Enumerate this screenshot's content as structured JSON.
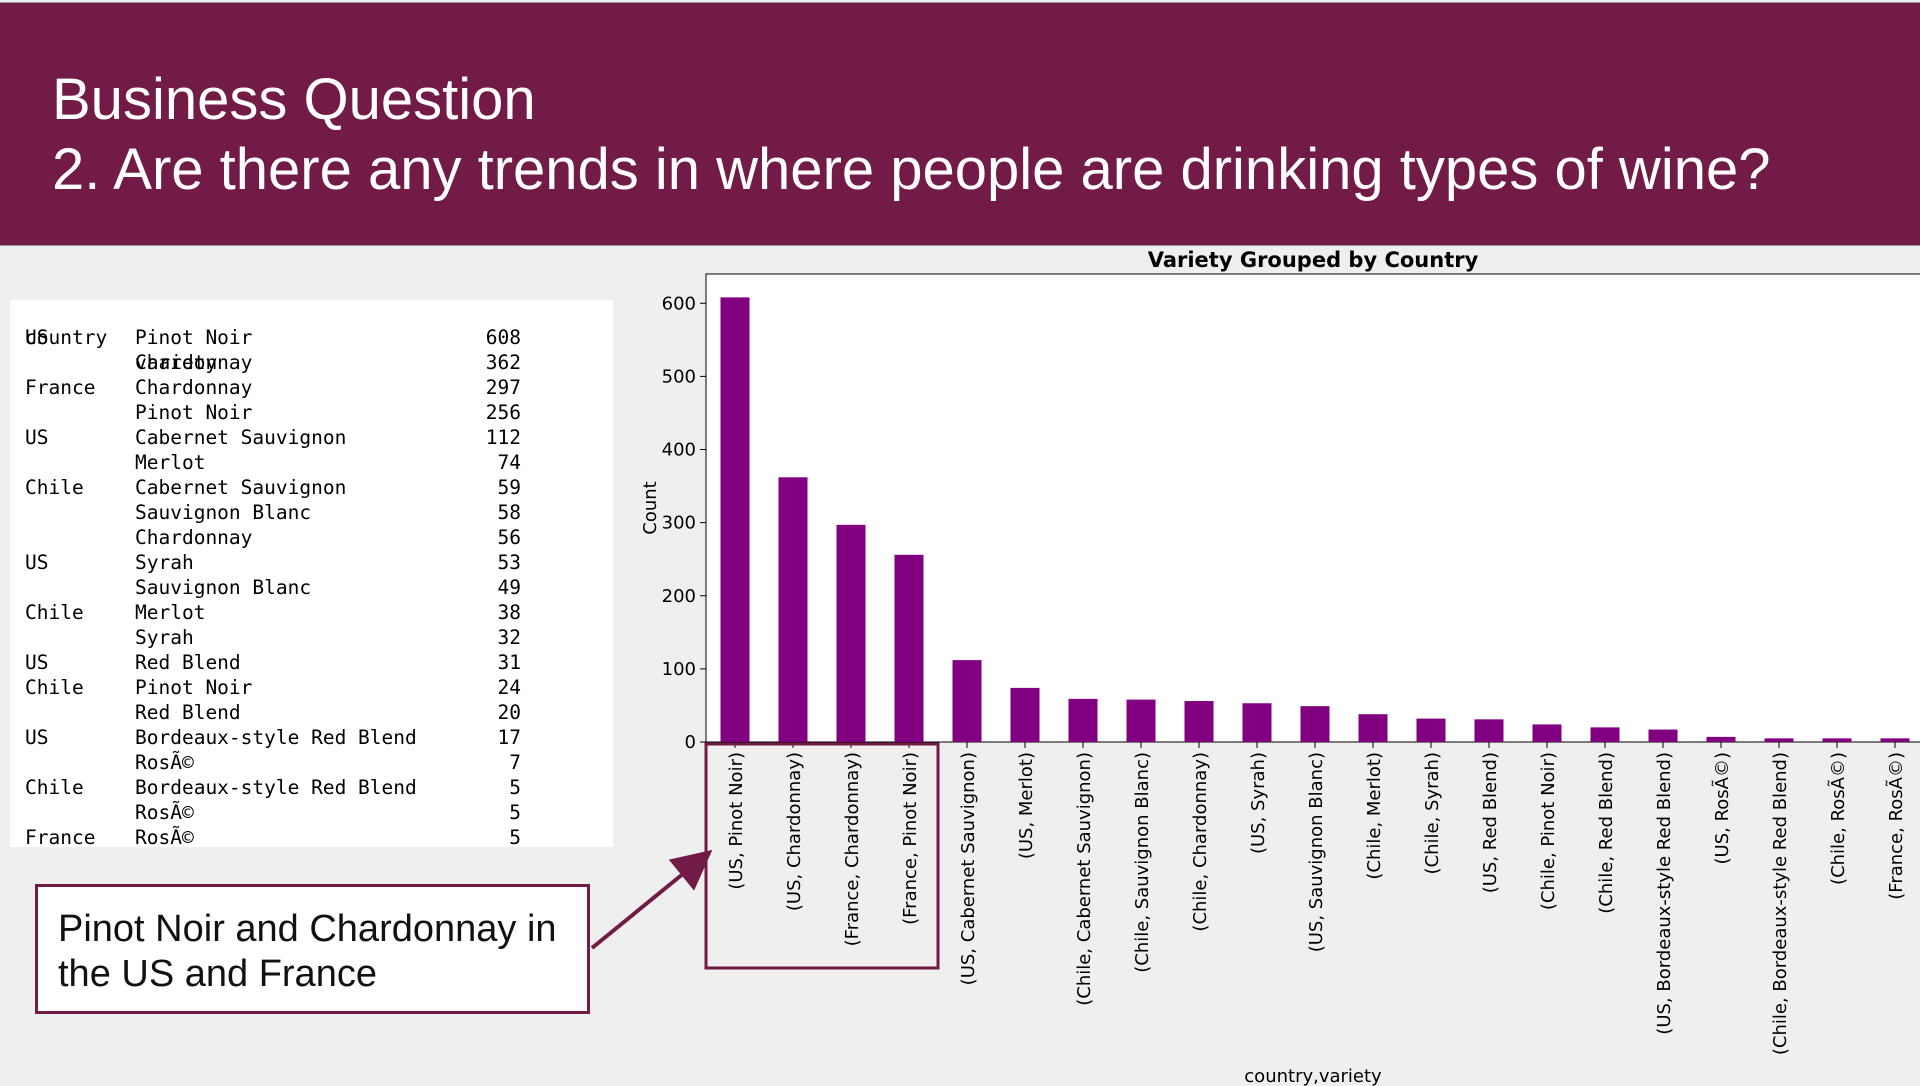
{
  "slide": {
    "title_line1": "Business Question",
    "title_line2": "2. Are there any trends in where people are drinking types of wine?",
    "header_color": "#731b47",
    "callout_text": "Pinot Noir and Chardonnay in the US and France"
  },
  "table": {
    "headers": [
      "country",
      "variety"
    ],
    "rows": [
      {
        "country": "US",
        "variety": "Pinot Noir",
        "count": "608"
      },
      {
        "country": "",
        "variety": "Chardonnay",
        "count": "362"
      },
      {
        "country": "France",
        "variety": "Chardonnay",
        "count": "297"
      },
      {
        "country": "",
        "variety": "Pinot Noir",
        "count": "256"
      },
      {
        "country": "US",
        "variety": "Cabernet Sauvignon",
        "count": "112"
      },
      {
        "country": "",
        "variety": "Merlot",
        "count": "74"
      },
      {
        "country": "Chile",
        "variety": "Cabernet Sauvignon",
        "count": "59"
      },
      {
        "country": "",
        "variety": "Sauvignon Blanc",
        "count": "58"
      },
      {
        "country": "",
        "variety": "Chardonnay",
        "count": "56"
      },
      {
        "country": "US",
        "variety": "Syrah",
        "count": "53"
      },
      {
        "country": "",
        "variety": "Sauvignon Blanc",
        "count": "49"
      },
      {
        "country": "Chile",
        "variety": "Merlot",
        "count": "38"
      },
      {
        "country": "",
        "variety": "Syrah",
        "count": "32"
      },
      {
        "country": "US",
        "variety": "Red Blend",
        "count": "31"
      },
      {
        "country": "Chile",
        "variety": "Pinot Noir",
        "count": "24"
      },
      {
        "country": "",
        "variety": "Red Blend",
        "count": "20"
      },
      {
        "country": "US",
        "variety": "Bordeaux-style Red Blend",
        "count": "17"
      },
      {
        "country": "",
        "variety": "RosÃ©",
        "count": "7"
      },
      {
        "country": "Chile",
        "variety": "Bordeaux-style Red Blend",
        "count": "5"
      },
      {
        "country": "",
        "variety": "RosÃ©",
        "count": "5"
      },
      {
        "country": "France",
        "variety": "RosÃ©",
        "count": "5"
      }
    ]
  },
  "chart_data": {
    "type": "bar",
    "title": "Variety Grouped by Country",
    "xlabel": "country,variety",
    "ylabel": "Count",
    "ylim": [
      0,
      640
    ],
    "yticks": [
      0,
      100,
      200,
      300,
      400,
      500,
      600
    ],
    "bar_color": "#800080",
    "categories": [
      "(US, Pinot Noir)",
      "(US, Chardonnay)",
      "(France, Chardonnay)",
      "(France, Pinot Noir)",
      "(US, Cabernet Sauvignon)",
      "(US, Merlot)",
      "(Chile, Cabernet Sauvignon)",
      "(Chile, Sauvignon Blanc)",
      "(Chile, Chardonnay)",
      "(US, Syrah)",
      "(US, Sauvignon Blanc)",
      "(Chile, Merlot)",
      "(Chile, Syrah)",
      "(US, Red Blend)",
      "(Chile, Pinot Noir)",
      "(Chile, Red Blend)",
      "(US, Bordeaux-style Red Blend)",
      "(US, RosÃ©)",
      "(Chile, Bordeaux-style Red Blend)",
      "(Chile, RosÃ©)",
      "(France, RosÃ©)"
    ],
    "values": [
      608,
      362,
      297,
      256,
      112,
      74,
      59,
      58,
      56,
      53,
      49,
      38,
      32,
      31,
      24,
      20,
      17,
      7,
      5,
      5,
      5
    ],
    "highlight_count": 4,
    "highlight_color": "#731b47"
  }
}
